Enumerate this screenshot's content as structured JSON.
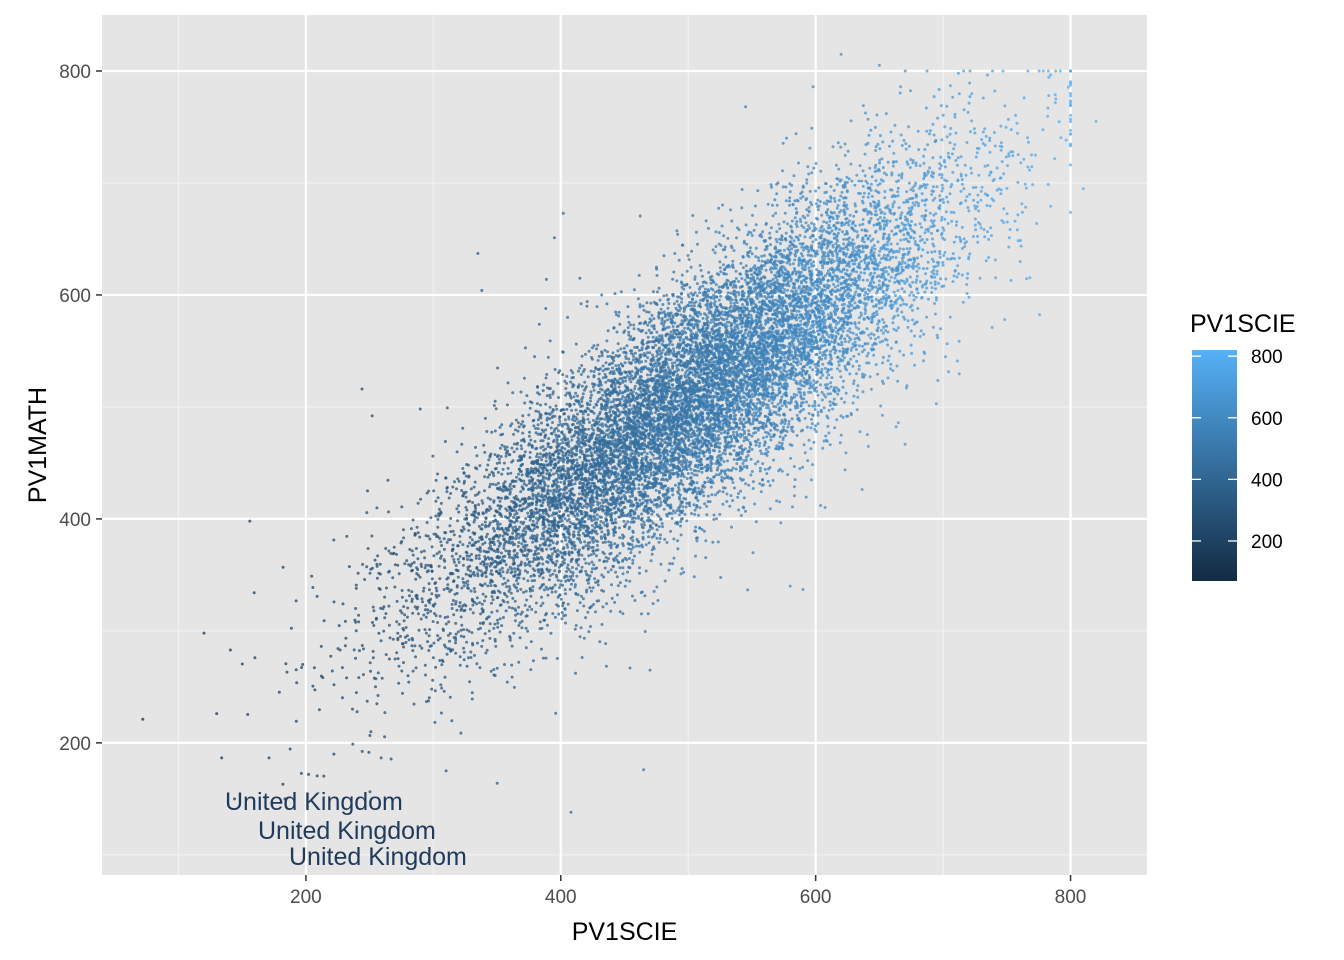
{
  "chart_data": {
    "type": "scatter",
    "title": "",
    "xlabel": "PV1SCIE",
    "ylabel": "PV1MATH",
    "xlim": [
      40,
      860
    ],
    "ylim": [
      82,
      850
    ],
    "x_ticks": [
      200,
      400,
      600,
      800
    ],
    "y_ticks": [
      200,
      400,
      600,
      800
    ],
    "x_tick_labels": [
      "200",
      "400",
      "600",
      "800"
    ],
    "y_tick_labels": [
      "200",
      "400",
      "600",
      "800"
    ],
    "grid": true,
    "background": "#e5e5e5",
    "color_scale": {
      "title": "PV1SCIE",
      "low": 70,
      "high": 820,
      "low_color": "#132b43",
      "high_color": "#56b1f7",
      "breaks": [
        200,
        400,
        600,
        800
      ],
      "break_labels": [
        "200",
        "400",
        "600",
        "800"
      ]
    },
    "legend_placement": "right",
    "n_points": 13000,
    "approx_relationship": {
      "slope": 0.82,
      "intercept": 95,
      "residual_sd": 52
    },
    "x_distribution": {
      "mean": 505,
      "sd": 100
    },
    "outliers": [
      {
        "x": 72,
        "y": 221
      },
      {
        "x": 120,
        "y": 298
      },
      {
        "x": 156,
        "y": 398
      },
      {
        "x": 160,
        "y": 276
      },
      {
        "x": 335,
        "y": 637
      },
      {
        "x": 338,
        "y": 604
      },
      {
        "x": 395,
        "y": 651
      },
      {
        "x": 402,
        "y": 673
      },
      {
        "x": 244,
        "y": 516
      },
      {
        "x": 252,
        "y": 492
      },
      {
        "x": 465,
        "y": 176
      },
      {
        "x": 408,
        "y": 138
      },
      {
        "x": 620,
        "y": 815
      },
      {
        "x": 650,
        "y": 805
      },
      {
        "x": 712,
        "y": 798
      },
      {
        "x": 820,
        "y": 755
      },
      {
        "x": 810,
        "y": 695
      },
      {
        "x": 598,
        "y": 786
      },
      {
        "x": 545,
        "y": 768
      },
      {
        "x": 590,
        "y": 337
      },
      {
        "x": 580,
        "y": 340
      },
      {
        "x": 415,
        "y": 615
      },
      {
        "x": 310,
        "y": 175
      },
      {
        "x": 222,
        "y": 190
      },
      {
        "x": 470,
        "y": 265
      }
    ],
    "annotations": [
      "United Kingdom",
      "United Kingdom",
      "United Kingdom"
    ]
  }
}
